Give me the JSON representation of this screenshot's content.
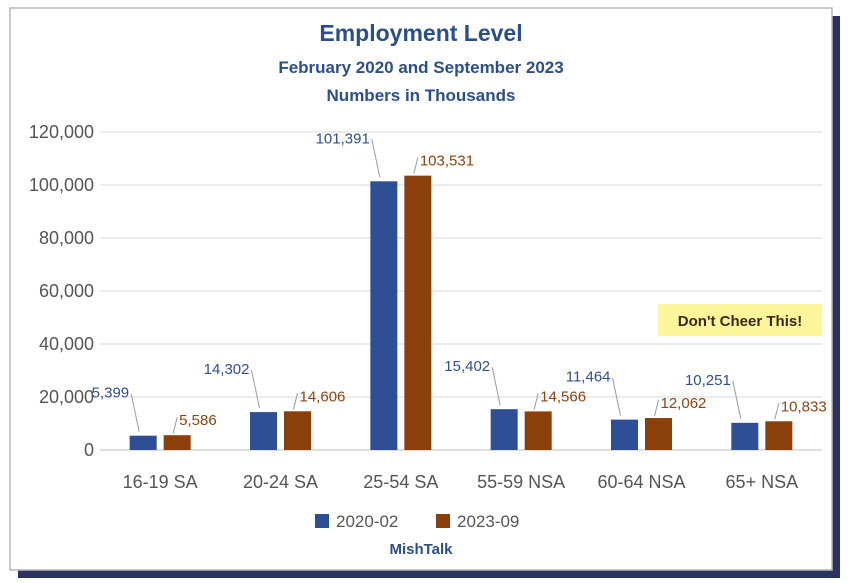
{
  "chart_data": {
    "type": "bar",
    "title": "Employment Level",
    "subtitle_1": "February 2020 and September 2023",
    "subtitle_2": "Numbers in Thousands",
    "categories": [
      "16-19 SA",
      "20-24 SA",
      "25-54 SA",
      "55-59 NSA",
      "60-64 NSA",
      "65+ NSA"
    ],
    "series": [
      {
        "name": "2020-02",
        "values": [
          5399,
          14302,
          101391,
          15402,
          11464,
          10251
        ]
      },
      {
        "name": "2023-09",
        "values": [
          5586,
          14606,
          103531,
          14566,
          12062,
          10833
        ]
      }
    ],
    "data_labels": [
      [
        "5,399",
        "14,302",
        "101,391",
        "15,402",
        "11,464",
        "10,251"
      ],
      [
        "5,586",
        "14,606",
        "103,531",
        "14,566",
        "12,062",
        "10,833"
      ]
    ],
    "y_ticks": [
      0,
      20000,
      40000,
      60000,
      80000,
      100000,
      120000
    ],
    "y_tick_labels": [
      "0",
      "20,000",
      "40,000",
      "60,000",
      "80,000",
      "100,000",
      "120,000"
    ],
    "ylim": [
      0,
      120000
    ],
    "grid": true,
    "legend_position": "bottom",
    "annotation": "Don't Cheer This!",
    "source": "MishTalk",
    "colors": {
      "series_1": "#2e4f96",
      "series_2": "#8b3f0a",
      "series_1_label": "#2f4f8f",
      "series_2_label": "#8b4513",
      "title": "#2b4f8a",
      "annotation_bg": "#fdf59b",
      "annotation_text": "#3b2a12",
      "grid": "#d9d9d9",
      "axis_text": "#555555"
    }
  }
}
